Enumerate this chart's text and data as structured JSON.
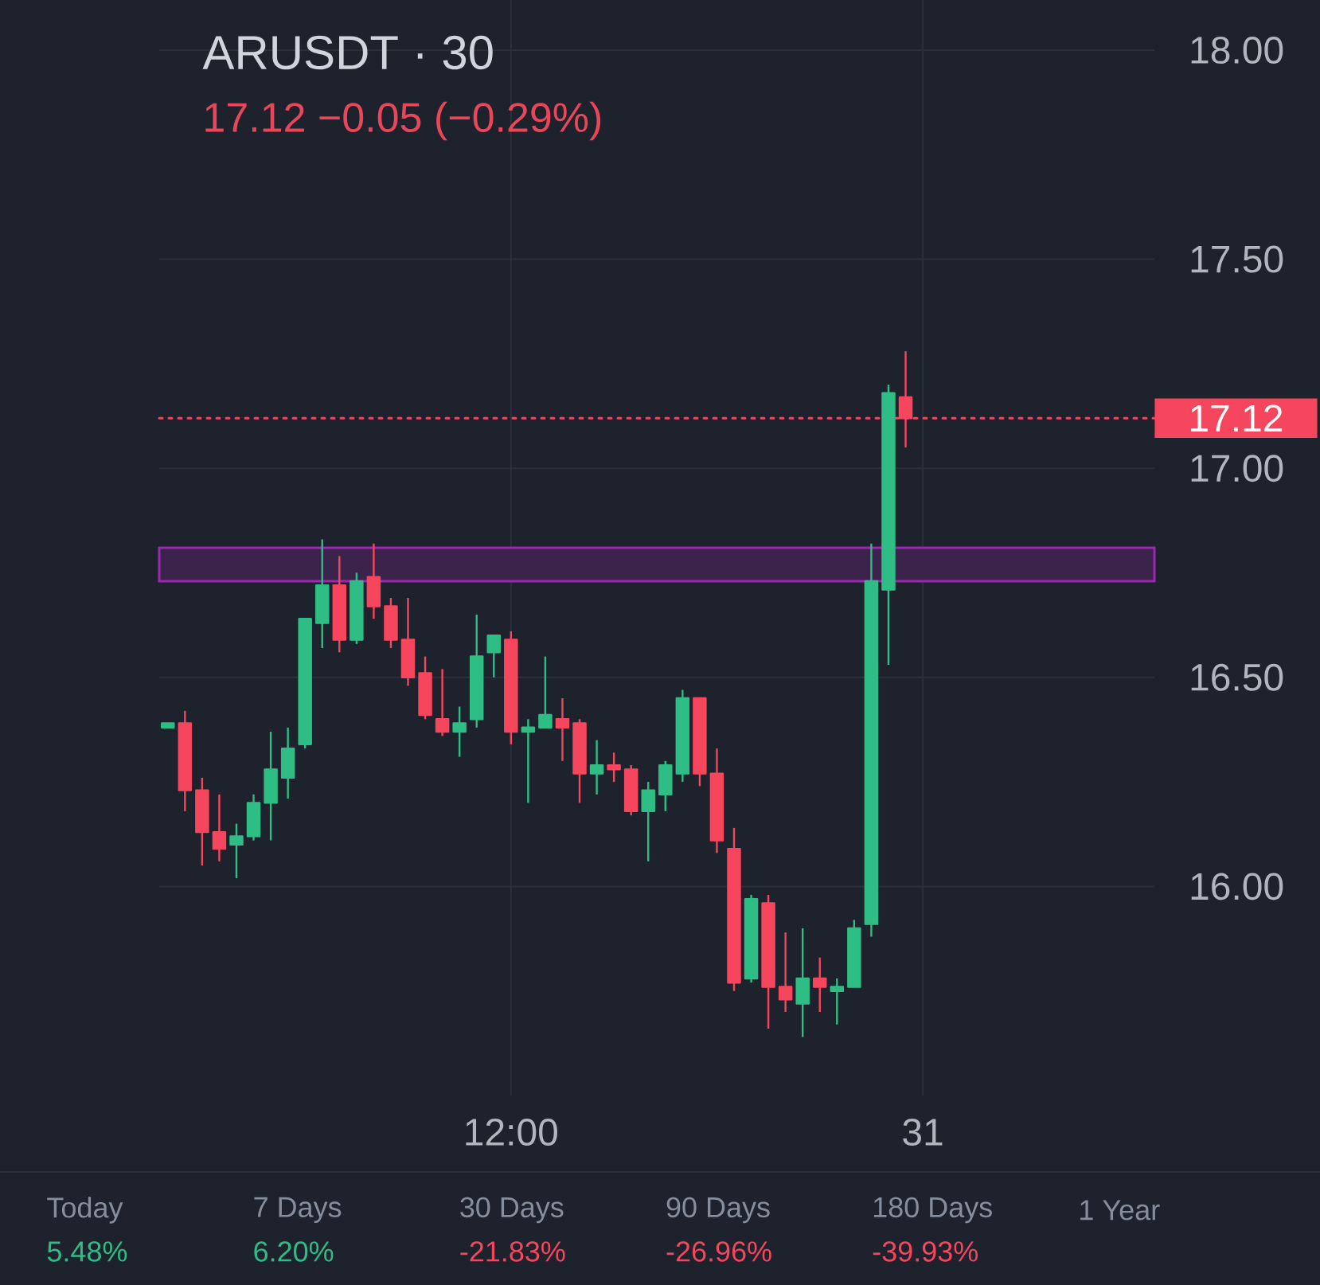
{
  "chart_data": [
    {
      "type": "candlestick",
      "title": "ARUSDT · 30",
      "subtitle": "17.12 −0.05 (−0.29%)",
      "categories": [
        null,
        null,
        null,
        null,
        null,
        null,
        null,
        null,
        null,
        null,
        null,
        null,
        null,
        null,
        null,
        null,
        null,
        null,
        null,
        null,
        "12:00",
        null,
        null,
        null,
        null,
        null,
        null,
        null,
        null,
        null,
        null,
        null,
        null,
        null,
        null,
        null,
        null,
        null,
        null,
        null,
        null,
        null,
        null,
        null,
        "31",
        null,
        null,
        null,
        null,
        null,
        null,
        null,
        null,
        null,
        null,
        null,
        null,
        null
      ],
      "ohlc": [
        [
          16.38,
          16.39,
          16.38,
          16.39
        ],
        [
          16.39,
          16.42,
          16.18,
          16.23
        ],
        [
          16.23,
          16.26,
          16.05,
          16.13
        ],
        [
          16.13,
          16.22,
          16.06,
          16.09
        ],
        [
          16.1,
          16.15,
          16.02,
          16.12
        ],
        [
          16.12,
          16.22,
          16.11,
          16.2
        ],
        [
          16.2,
          16.37,
          16.11,
          16.28
        ],
        [
          16.26,
          16.38,
          16.21,
          16.33
        ],
        [
          16.34,
          16.64,
          16.33,
          16.64
        ],
        [
          16.63,
          16.83,
          16.57,
          16.72
        ],
        [
          16.72,
          16.79,
          16.56,
          16.59
        ],
        [
          16.59,
          16.75,
          16.58,
          16.73
        ],
        [
          16.74,
          16.82,
          16.64,
          16.67
        ],
        [
          16.67,
          16.69,
          16.57,
          16.59
        ],
        [
          16.59,
          16.69,
          16.48,
          16.5
        ],
        [
          16.51,
          16.55,
          16.4,
          16.41
        ],
        [
          16.4,
          16.52,
          16.36,
          16.37
        ],
        [
          16.37,
          16.43,
          16.31,
          16.39
        ],
        [
          16.4,
          16.65,
          16.38,
          16.55
        ],
        [
          16.56,
          16.6,
          16.5,
          16.6
        ],
        [
          16.59,
          16.61,
          16.34,
          16.37
        ],
        [
          16.37,
          16.4,
          16.2,
          16.38
        ],
        [
          16.38,
          16.55,
          16.38,
          16.41
        ],
        [
          16.4,
          16.45,
          16.3,
          16.38
        ],
        [
          16.39,
          16.4,
          16.2,
          16.27
        ],
        [
          16.27,
          16.35,
          16.22,
          16.29
        ],
        [
          16.29,
          16.32,
          16.25,
          16.28
        ],
        [
          16.28,
          16.29,
          16.17,
          16.18
        ],
        [
          16.18,
          16.25,
          16.06,
          16.23
        ],
        [
          16.22,
          16.3,
          16.18,
          16.29
        ],
        [
          16.27,
          16.47,
          16.25,
          16.45
        ],
        [
          16.45,
          16.45,
          16.24,
          16.27
        ],
        [
          16.27,
          16.33,
          16.08,
          16.11
        ],
        [
          16.09,
          16.14,
          15.75,
          15.77
        ],
        [
          15.78,
          15.98,
          15.77,
          15.97
        ],
        [
          15.96,
          15.98,
          15.66,
          15.76
        ],
        [
          15.76,
          15.89,
          15.7,
          15.73
        ],
        [
          15.72,
          15.9,
          15.64,
          15.78
        ],
        [
          15.78,
          15.83,
          15.7,
          15.76
        ],
        [
          15.75,
          15.78,
          15.67,
          15.76
        ],
        [
          15.76,
          15.92,
          15.76,
          15.9
        ],
        [
          15.91,
          16.82,
          15.88,
          16.73
        ],
        [
          16.71,
          17.2,
          16.53,
          17.18
        ],
        [
          17.17,
          17.28,
          17.05,
          17.12
        ],
        null,
        null,
        null,
        null,
        null,
        null,
        null,
        null,
        null,
        null,
        null,
        null,
        null,
        null
      ],
      "colors": [
        "#2ebd85",
        "#f6465d",
        "#f6465d",
        "#f6465d",
        "#2ebd85",
        "#2ebd85",
        "#2ebd85",
        "#2ebd85",
        "#2ebd85",
        "#2ebd85",
        "#f6465d",
        "#2ebd85",
        "#f6465d",
        "#f6465d",
        "#f6465d",
        "#f6465d",
        "#f6465d",
        "#2ebd85",
        "#2ebd85",
        "#2ebd85",
        "#f6465d",
        "#2ebd85",
        "#2ebd85",
        "#f6465d",
        "#f6465d",
        "#2ebd85",
        "#f6465d",
        "#f6465d",
        "#2ebd85",
        "#2ebd85",
        "#2ebd85",
        "#f6465d",
        "#f6465d",
        "#f6465d",
        "#2ebd85",
        "#f6465d",
        "#f6465d",
        "#2ebd85",
        "#f6465d",
        "#2ebd85",
        "#2ebd85",
        "#2ebd85",
        "#2ebd85",
        "#f6465d",
        null,
        null,
        null,
        null,
        null,
        null,
        null,
        null,
        null,
        null,
        null,
        null,
        null,
        null
      ],
      "ylim": [
        15.5,
        18.12
      ],
      "yticks": [
        {
          "value": 16,
          "label": "16.00"
        },
        {
          "value": 16.5,
          "label": "16.50"
        },
        {
          "value": 17,
          "label": "17.00"
        },
        {
          "value": 17.5,
          "label": "17.50"
        },
        {
          "value": 18,
          "label": "18.00"
        }
      ],
      "grid": true,
      "ref_lines": [
        {
          "axis": "y",
          "value": 17.12,
          "label": "17.12",
          "color": "#f6465d",
          "line_style": "dotted"
        }
      ],
      "bands": [
        {
          "axis": "y",
          "from": 16.73,
          "to": 16.81,
          "color": "#9c27b0"
        }
      ]
    },
    {
      "type": "other",
      "annotations": [
        "Today",
        "5.48%",
        "7 Days",
        "6.20%",
        "30 Days",
        "-21.83%",
        "90 Days",
        "-26.96%",
        "180 Days",
        "-39.93%",
        "1 Year"
      ],
      "colors": [
        "#848e9c",
        "#2ebd85",
        "#848e9c",
        "#2ebd85",
        "#848e9c",
        "#f6465d",
        "#848e9c",
        "#f6465d",
        "#848e9c",
        "#f6465d",
        "#848e9c"
      ]
    }
  ]
}
